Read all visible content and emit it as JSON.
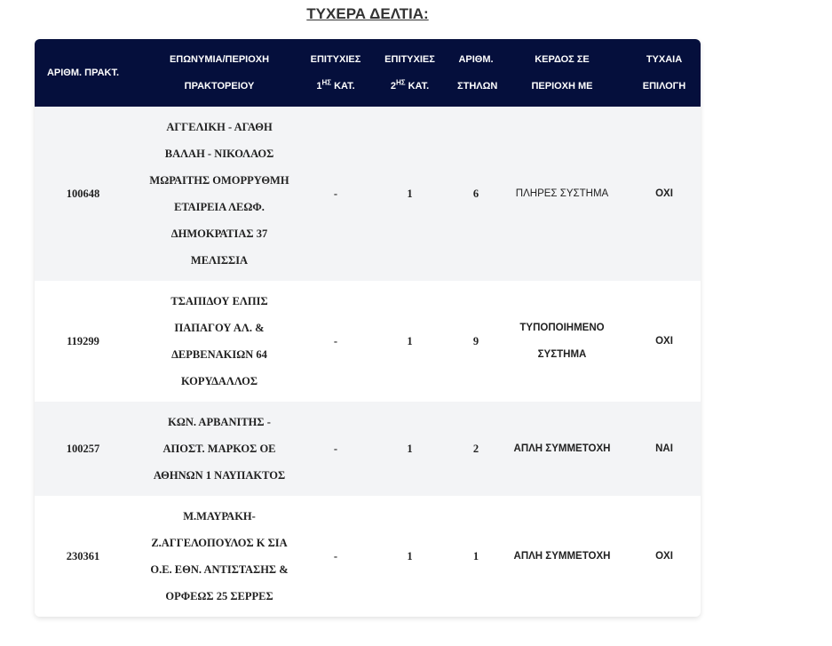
{
  "title": "ΤΥΧΕΡΑ ΔΕΛΤΙΑ:",
  "headers": {
    "h1": "ΑΡΙΘΜ. ΠΡΑΚΤ.",
    "h2a": "ΕΠΩΝΥΜΙΑ/ΠΕΡΙΟΧΗ",
    "h2b": "ΠΡΑΚΤΟΡΕΙΟΥ",
    "h3a": "ΕΠΙΤΥΧΙΕΣ",
    "h3n": "1",
    "h3s": "ΗΣ",
    "h3b": "ΚΑΤ.",
    "h4a": "ΕΠΙΤΥΧΙΕΣ",
    "h4n": "2",
    "h4s": "ΗΣ",
    "h4b": "ΚΑΤ.",
    "h5a": "ΑΡΙΘΜ.",
    "h5b": "ΣΤΗΛΩΝ",
    "h6a": "ΚΕΡΔΟΣ ΣΕ",
    "h6b": "ΠΕΡΙΟΧΗ ΜΕ",
    "h7a": "ΤΥΧΑΙΑ",
    "h7b": "ΕΠΙΛΟΓΗ"
  },
  "rows": [
    {
      "id": "100648",
      "name": [
        "ΑΓΓΕΛΙΚΗ - ΑΓΑΘΗ",
        "ΒΑΛΑΗ - ΝΙΚΟΛΑΟΣ",
        "ΜΩΡΑΙΤΗΣ ΟΜΟΡΡΥΘΜΗ",
        "ΕΤΑΙΡΕΙΑ ΛΕΩΦ.",
        "ΔΗΜΟΚΡΑΤΙΑΣ 37",
        "ΜΕΛΙΣΣΙΑ"
      ],
      "first": "-",
      "second": "1",
      "columns": "6",
      "system": [
        "ΠΛΗΡΕΣ ΣΥΣΤΗΜΑ"
      ],
      "random": "ΟΧΙ"
    },
    {
      "id": "119299",
      "name": [
        "ΤΣΑΠΙΔΟΥ ΕΛΠΙΣ",
        "ΠΑΠΑΓΟΥ ΑΛ. &",
        "ΔΕΡΒΕΝΑΚΙΩΝ 64",
        "ΚΟΡΥΔΑΛΛΟΣ"
      ],
      "first": "-",
      "second": "1",
      "columns": "9",
      "system": [
        "ΤΥΠΟΠΟΙΗΜΕΝΟ",
        "ΣΥΣΤΗΜΑ"
      ],
      "random": "ΟΧΙ"
    },
    {
      "id": "100257",
      "name": [
        "ΚΩΝ. ΑΡΒΑΝΙΤΗΣ -",
        "ΑΠΟΣΤ. ΜΑΡΚΟΣ ΟΕ",
        "ΑΘΗΝΩΝ 1  ΝΑΥΠΑΚΤΟΣ"
      ],
      "first": "-",
      "second": "1",
      "columns": "2",
      "system": [
        "ΑΠΛΗ ΣΥΜΜΕΤΟΧΗ"
      ],
      "random": "ΝΑΙ"
    },
    {
      "id": "230361",
      "name": [
        "Μ.ΜΑΥΡΑΚΗ-",
        "Ζ.ΑΓΓΕΛΟΠΟΥΛΟΣ Κ ΣΙΑ",
        "Ο.Ε.  ΕΘΝ. ΑΝΤΙΣΤΑΣΗΣ &",
        "ΟΡΦΕΩΣ 25  ΣΕΡΡΕΣ"
      ],
      "first": "-",
      "second": "1",
      "columns": "1",
      "system": [
        "ΑΠΛΗ ΣΥΜΜΕΤΟΧΗ"
      ],
      "random": "ΟΧΙ"
    }
  ]
}
